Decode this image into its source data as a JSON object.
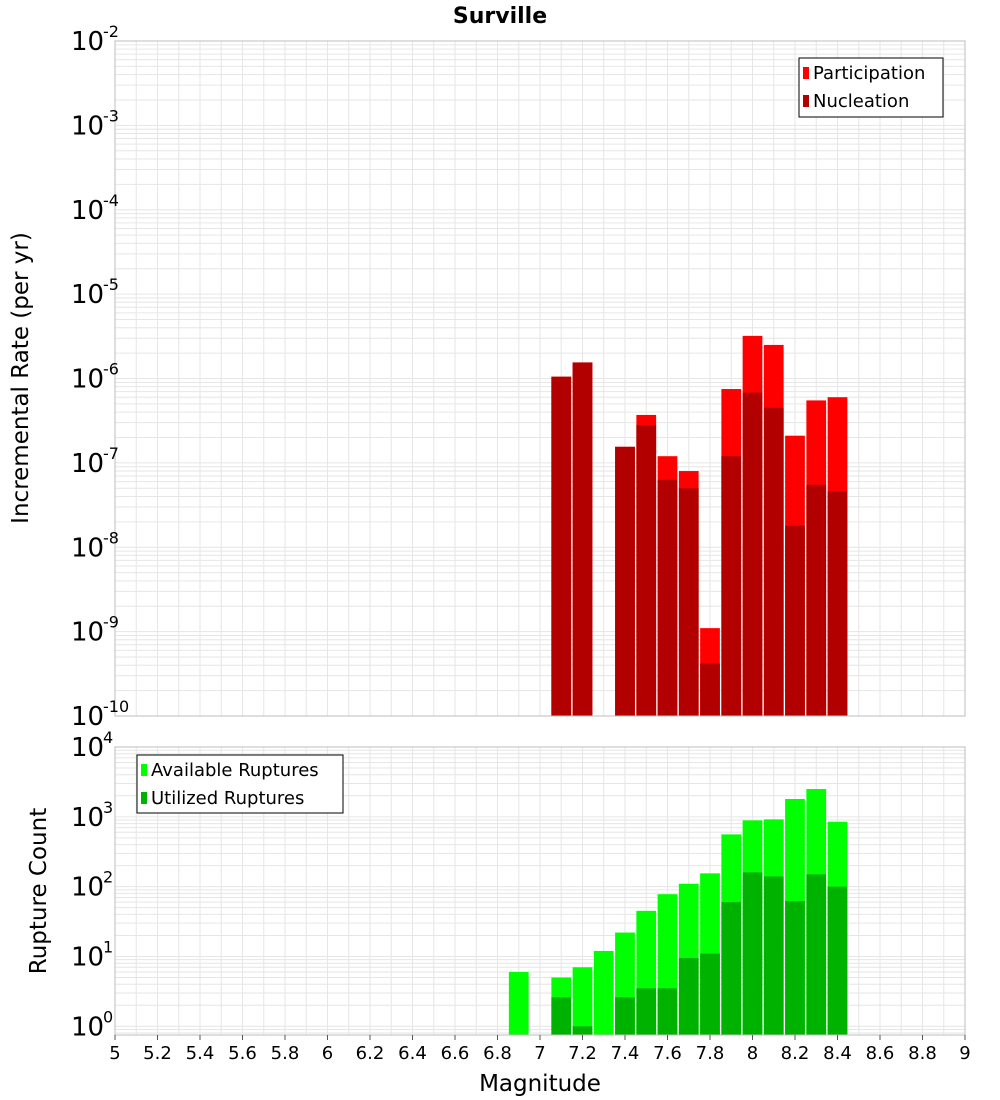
{
  "colors": {
    "participation": "#ff0000",
    "nucleation": "#b20000",
    "available": "#00ff00",
    "utilized": "#00b200",
    "grid": "#e6e6e6",
    "plot_border": "#bdbdbd"
  },
  "chart_data": [
    {
      "type": "bar",
      "title": "Surville",
      "xlabel": "Magnitude",
      "ylabel": "Incremental Rate (per yr)",
      "yscale": "log",
      "xlim": [
        5,
        9
      ],
      "ylim": [
        1e-10,
        0.01
      ],
      "grid": true,
      "legend_position": "top-right",
      "bin_width": 0.1,
      "x": [
        7.1,
        7.2,
        7.4,
        7.5,
        7.6,
        7.7,
        7.8,
        7.9,
        8.0,
        8.1,
        8.2,
        8.3,
        8.4
      ],
      "series": [
        {
          "name": "Participation",
          "values": [
            1.05e-06,
            1.55e-06,
            1.55e-07,
            3.7e-07,
            1.2e-07,
            8e-08,
            1.1e-09,
            7.5e-07,
            3.2e-06,
            2.5e-06,
            2.1e-07,
            5.5e-07,
            6e-07
          ]
        },
        {
          "name": "Nucleation",
          "values": [
            1.05e-06,
            1.55e-06,
            1.55e-07,
            2.8e-07,
            6.3e-08,
            5e-08,
            4.2e-10,
            1.2e-07,
            6.8e-07,
            4.5e-07,
            1.8e-08,
            5.5e-08,
            4.6e-08
          ]
        }
      ],
      "ytick_labels": [
        {
          "base": "10",
          "exp": "-10"
        },
        {
          "base": "10",
          "exp": "-9"
        },
        {
          "base": "10",
          "exp": "-8"
        },
        {
          "base": "10",
          "exp": "-7"
        },
        {
          "base": "10",
          "exp": "-6"
        },
        {
          "base": "10",
          "exp": "-5"
        },
        {
          "base": "10",
          "exp": "-4"
        },
        {
          "base": "10",
          "exp": "-3"
        },
        {
          "base": "10",
          "exp": "-2"
        }
      ]
    },
    {
      "type": "bar",
      "xlabel": "Magnitude",
      "ylabel": "Rupture Count",
      "yscale": "log",
      "xlim": [
        5,
        9
      ],
      "ylim": [
        0.75,
        10000
      ],
      "grid": true,
      "legend_position": "top-left",
      "bin_width": 0.1,
      "x": [
        6.9,
        7.1,
        7.2,
        7.3,
        7.4,
        7.5,
        7.6,
        7.7,
        7.8,
        7.9,
        8.0,
        8.1,
        8.2,
        8.3,
        8.4
      ],
      "series": [
        {
          "name": "Available Ruptures",
          "values": [
            6,
            5,
            7,
            12,
            22,
            45,
            78,
            110,
            155,
            560,
            890,
            920,
            1800,
            2500,
            850
          ]
        },
        {
          "name": "Utilized Ruptures",
          "values": [
            0,
            2.6,
            1,
            0,
            2.6,
            3.5,
            3.5,
            9.5,
            11,
            60,
            160,
            140,
            62,
            150,
            100
          ]
        }
      ],
      "xtick_labels": [
        "5",
        "5.2",
        "5.4",
        "5.6",
        "5.8",
        "6",
        "6.2",
        "6.4",
        "6.6",
        "6.8",
        "7",
        "7.2",
        "7.4",
        "7.6",
        "7.8",
        "8",
        "8.2",
        "8.4",
        "8.6",
        "8.8",
        "9"
      ],
      "ytick_labels": [
        {
          "base": "10",
          "exp": "0"
        },
        {
          "base": "10",
          "exp": "1"
        },
        {
          "base": "10",
          "exp": "2"
        },
        {
          "base": "10",
          "exp": "3"
        },
        {
          "base": "10",
          "exp": "4"
        }
      ]
    }
  ]
}
